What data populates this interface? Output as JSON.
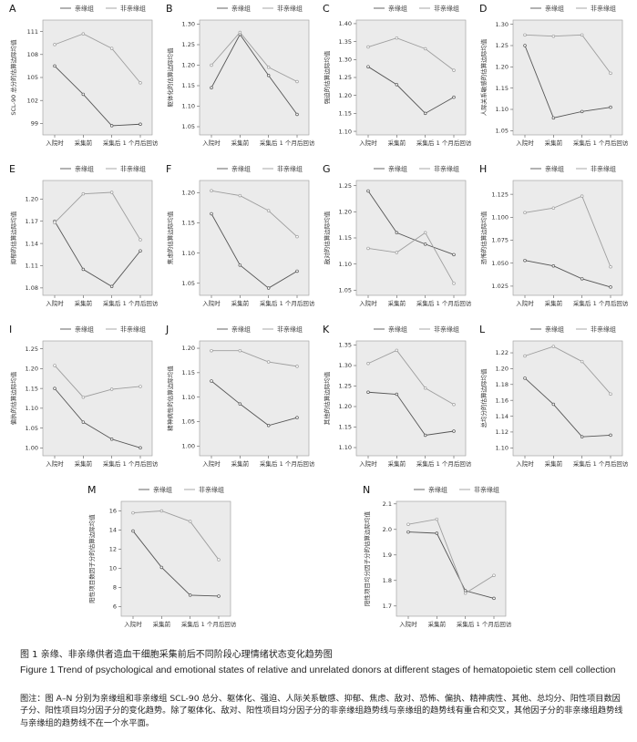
{
  "legend": {
    "relative": "亲缘组",
    "unrelated": "非亲缘组"
  },
  "colors": {
    "relative": "#555555",
    "unrelated": "#9e9e9e",
    "plot_bg": "#ebebeb"
  },
  "chart_data": [
    {
      "panel": "A",
      "type": "line",
      "ylabel": "SCL-90 总分的估算边际均值",
      "categories": [
        "入院时",
        "采集前",
        "采集后",
        "1 个月后回访"
      ],
      "yticks": [
        "99",
        "102",
        "105",
        "108",
        "111"
      ],
      "ylim": [
        97.5,
        112.5
      ],
      "series": [
        {
          "key": "relative",
          "values": [
            106.5,
            102.8,
            98.7,
            98.9
          ]
        },
        {
          "key": "unrelated",
          "values": [
            109.3,
            110.7,
            108.8,
            104.3
          ]
        }
      ]
    },
    {
      "panel": "B",
      "type": "line",
      "ylabel": "躯体化的估算边际均值",
      "categories": [
        "入院时",
        "采集前",
        "采集后",
        "1 个月后回访"
      ],
      "yticks": [
        "1.05",
        "1.10",
        "1.15",
        "1.20",
        "1.25",
        "1.30"
      ],
      "ylim": [
        1.03,
        1.31
      ],
      "series": [
        {
          "key": "relative",
          "values": [
            1.145,
            1.275,
            1.175,
            1.08
          ]
        },
        {
          "key": "unrelated",
          "values": [
            1.2,
            1.28,
            1.195,
            1.16
          ]
        }
      ]
    },
    {
      "panel": "C",
      "type": "line",
      "ylabel": "强迫的估算边际均值",
      "categories": [
        "入院时",
        "采集前",
        "采集后",
        "1 个月后回访"
      ],
      "yticks": [
        "1.10",
        "1.15",
        "1.20",
        "1.25",
        "1.30",
        "1.35",
        "1.40"
      ],
      "ylim": [
        1.09,
        1.41
      ],
      "series": [
        {
          "key": "relative",
          "values": [
            1.28,
            1.23,
            1.15,
            1.195
          ]
        },
        {
          "key": "unrelated",
          "values": [
            1.335,
            1.36,
            1.33,
            1.27
          ]
        }
      ]
    },
    {
      "panel": "D",
      "type": "line",
      "ylabel": "人际关系敏感的估算边际均值",
      "categories": [
        "入院时",
        "采集前",
        "采集后",
        "1 个月后回访"
      ],
      "yticks": [
        "1.05",
        "1.10",
        "1.15",
        "1.20",
        "1.25",
        "1.30"
      ],
      "ylim": [
        1.04,
        1.31
      ],
      "series": [
        {
          "key": "relative",
          "values": [
            1.25,
            1.08,
            1.095,
            1.105
          ]
        },
        {
          "key": "unrelated",
          "values": [
            1.275,
            1.272,
            1.275,
            1.185
          ]
        }
      ]
    },
    {
      "panel": "E",
      "type": "line",
      "ylabel": "抑郁的估算边际均值",
      "categories": [
        "入院时",
        "采集前",
        "采集后",
        "1 个月后回访"
      ],
      "yticks": [
        "1.08",
        "1.11",
        "1.14",
        "1.17",
        "1.20"
      ],
      "ylim": [
        1.07,
        1.225
      ],
      "series": [
        {
          "key": "relative",
          "values": [
            1.17,
            1.105,
            1.082,
            1.13
          ]
        },
        {
          "key": "unrelated",
          "values": [
            1.168,
            1.207,
            1.209,
            1.145
          ]
        }
      ]
    },
    {
      "panel": "F",
      "type": "line",
      "ylabel": "焦虑的估算边际均值",
      "categories": [
        "入院时",
        "采集前",
        "采集后",
        "1 个月后回访"
      ],
      "yticks": [
        "1.05",
        "1.10",
        "1.15",
        "1.20"
      ],
      "ylim": [
        1.03,
        1.22
      ],
      "series": [
        {
          "key": "relative",
          "values": [
            1.165,
            1.08,
            1.042,
            1.07
          ]
        },
        {
          "key": "unrelated",
          "values": [
            1.203,
            1.195,
            1.17,
            1.127
          ]
        }
      ]
    },
    {
      "panel": "G",
      "type": "line",
      "ylabel": "敌对的估算边际均值",
      "categories": [
        "入院时",
        "采集前",
        "采集后",
        "1 个月后回访"
      ],
      "yticks": [
        "1.05",
        "1.10",
        "1.15",
        "1.20",
        "1.25"
      ],
      "ylim": [
        1.04,
        1.26
      ],
      "series": [
        {
          "key": "relative",
          "values": [
            1.24,
            1.16,
            1.138,
            1.118
          ]
        },
        {
          "key": "unrelated",
          "values": [
            1.13,
            1.122,
            1.16,
            1.063
          ]
        }
      ]
    },
    {
      "panel": "H",
      "type": "line",
      "ylabel": "恐怖的估算边际均值",
      "categories": [
        "入院时",
        "采集前",
        "采集后",
        "1 个月后回访"
      ],
      "yticks": [
        "1.025",
        "1.050",
        "1.075",
        "1.100",
        "1.125"
      ],
      "ylim": [
        1.015,
        1.14
      ],
      "series": [
        {
          "key": "relative",
          "values": [
            1.053,
            1.047,
            1.033,
            1.024
          ]
        },
        {
          "key": "unrelated",
          "values": [
            1.105,
            1.11,
            1.123,
            1.046
          ]
        }
      ]
    },
    {
      "panel": "I",
      "type": "line",
      "ylabel": "偏执的估算边际均值",
      "categories": [
        "入院时",
        "采集前",
        "采集后",
        "1 个月后回访"
      ],
      "yticks": [
        "1.00",
        "1.05",
        "1.10",
        "1.15",
        "1.20",
        "1.25"
      ],
      "ylim": [
        0.98,
        1.27
      ],
      "series": [
        {
          "key": "relative",
          "values": [
            1.15,
            1.065,
            1.022,
            1.0
          ]
        },
        {
          "key": "unrelated",
          "values": [
            1.208,
            1.128,
            1.148,
            1.155
          ]
        }
      ]
    },
    {
      "panel": "J",
      "type": "line",
      "ylabel": "精神病性的估算边际均值",
      "categories": [
        "入院时",
        "采集前",
        "采集后",
        "1 个月后回访"
      ],
      "yticks": [
        "1.00",
        "1.05",
        "1.10",
        "1.15",
        "1.20"
      ],
      "ylim": [
        0.98,
        1.215
      ],
      "series": [
        {
          "key": "relative",
          "values": [
            1.133,
            1.086,
            1.042,
            1.058
          ]
        },
        {
          "key": "unrelated",
          "values": [
            1.195,
            1.195,
            1.172,
            1.163
          ]
        }
      ]
    },
    {
      "panel": "K",
      "type": "line",
      "ylabel": "其他的估算边际均值",
      "categories": [
        "入院时",
        "采集前",
        "采集后",
        "1 个月后回访"
      ],
      "yticks": [
        "1.10",
        "1.15",
        "1.20",
        "1.25",
        "1.30",
        "1.35"
      ],
      "ylim": [
        1.08,
        1.36
      ],
      "series": [
        {
          "key": "relative",
          "values": [
            1.235,
            1.23,
            1.13,
            1.14
          ]
        },
        {
          "key": "unrelated",
          "values": [
            1.305,
            1.337,
            1.245,
            1.205
          ]
        }
      ]
    },
    {
      "panel": "L",
      "type": "line",
      "ylabel": "总均分的估算边际均值",
      "categories": [
        "入院时",
        "采集前",
        "采集后",
        "1 个月后回访"
      ],
      "yticks": [
        "1.10",
        "1.12",
        "1.14",
        "1.16",
        "1.18",
        "1.20",
        "1.22"
      ],
      "ylim": [
        1.09,
        1.235
      ],
      "series": [
        {
          "key": "relative",
          "values": [
            1.188,
            1.155,
            1.114,
            1.116
          ]
        },
        {
          "key": "unrelated",
          "values": [
            1.216,
            1.228,
            1.209,
            1.168
          ]
        }
      ]
    },
    {
      "panel": "M",
      "type": "line",
      "ylabel": "阳性项目数因子分的估算边际均值",
      "categories": [
        "入院时",
        "采集前",
        "采集后",
        "1 个月后回访"
      ],
      "yticks": [
        "6",
        "8",
        "10",
        "12",
        "14",
        "16"
      ],
      "ylim": [
        5,
        17
      ],
      "series": [
        {
          "key": "relative",
          "values": [
            13.9,
            10.1,
            7.2,
            7.1
          ]
        },
        {
          "key": "unrelated",
          "values": [
            15.8,
            16.0,
            14.9,
            10.9
          ]
        }
      ]
    },
    {
      "panel": "N",
      "type": "line",
      "ylabel": "阳性项目均分因子分的估算边际均值",
      "categories": [
        "入院时",
        "采集前",
        "采集后",
        "1 个月后回访"
      ],
      "yticks": [
        "1.7",
        "1.8",
        "1.9",
        "2.0",
        "2.1"
      ],
      "ylim": [
        1.66,
        2.11
      ],
      "series": [
        {
          "key": "relative",
          "values": [
            1.99,
            1.985,
            1.76,
            1.73
          ]
        },
        {
          "key": "unrelated",
          "values": [
            2.02,
            2.04,
            1.75,
            1.82
          ]
        }
      ]
    }
  ],
  "caption": {
    "cn": "图 1   亲缘、非亲缘供者造血干细胞采集前后不同阶段心理情绪状态变化趋势图",
    "en": "Figure 1   Trend of psychological and emotional states of relative and unrelated donors at different stages of hematopoietic stem cell collection",
    "note": "图注：图 A–N 分别为亲缘组和非亲缘组 SCL-90 总分、躯体化、强迫、人际关系敏感、抑郁、焦虑、敌对、恐怖、偏执、精神病性、其他、总均分、阳性项目数因子分、阳性项目均分因子分的变化趋势。除了躯体化、敌对、阳性项目均分因子分的非亲缘组趋势线与亲缘组的趋势线有重合和交叉，其他因子分的非亲缘组趋势线与亲缘组的趋势线不在一个水平面。"
  }
}
